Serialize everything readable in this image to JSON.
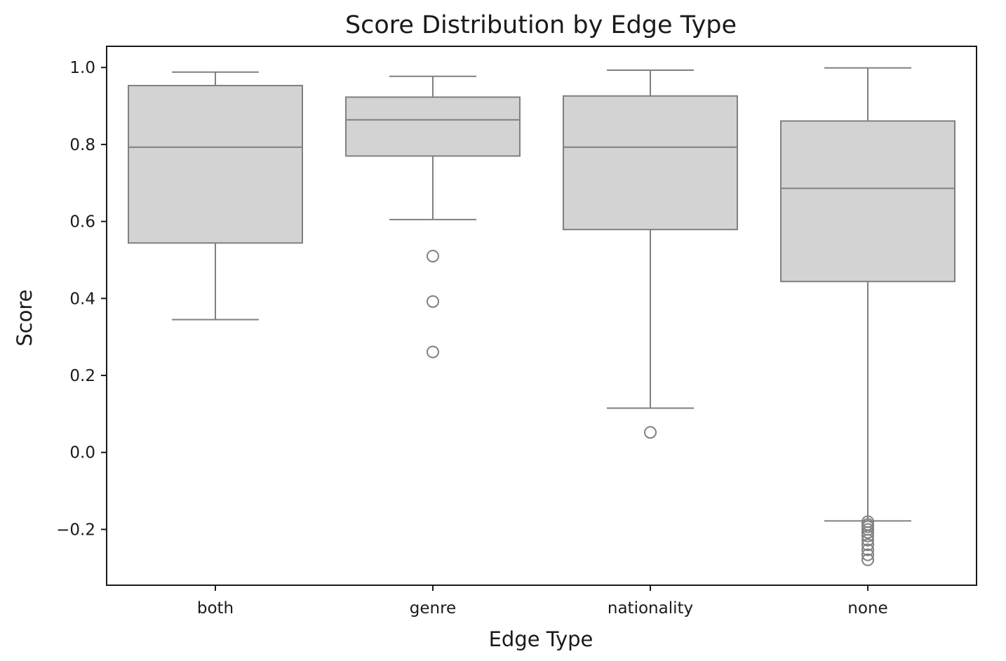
{
  "chart_data": {
    "type": "box",
    "title": "Score Distribution by Edge Type",
    "xlabel": "Edge Type",
    "ylabel": "Score",
    "ylim": [
      -0.345,
      1.055
    ],
    "yticks": [
      -0.2,
      0.0,
      0.2,
      0.4,
      0.6,
      0.8,
      1.0
    ],
    "ytick_labels": [
      "−0.2",
      "0.0",
      "0.2",
      "0.4",
      "0.6",
      "0.8",
      "1.0"
    ],
    "categories": [
      "both",
      "genre",
      "nationality",
      "none"
    ],
    "boxes": [
      {
        "category": "both",
        "whisker_low": 0.345,
        "q1": 0.544,
        "median": 0.793,
        "q3": 0.953,
        "whisker_high": 0.988,
        "fliers": []
      },
      {
        "category": "genre",
        "whisker_low": 0.605,
        "q1": 0.77,
        "median": 0.864,
        "q3": 0.923,
        "whisker_high": 0.977,
        "fliers": [
          0.51,
          0.392,
          0.261
        ]
      },
      {
        "category": "nationality",
        "whisker_low": 0.115,
        "q1": 0.579,
        "median": 0.793,
        "q3": 0.926,
        "whisker_high": 0.993,
        "fliers": [
          0.052
        ]
      },
      {
        "category": "none",
        "whisker_low": -0.178,
        "q1": 0.444,
        "median": 0.686,
        "q3": 0.861,
        "whisker_high": 0.999,
        "fliers": [
          -0.18,
          -0.187,
          -0.193,
          -0.2,
          -0.208,
          -0.217,
          -0.228,
          -0.24,
          -0.253,
          -0.266,
          -0.279
        ]
      }
    ],
    "grid": false,
    "legend": "none",
    "colors": {
      "box_fill": "#d3d3d3",
      "box_edge": "#808080",
      "frame": "#1a1a1a"
    }
  }
}
